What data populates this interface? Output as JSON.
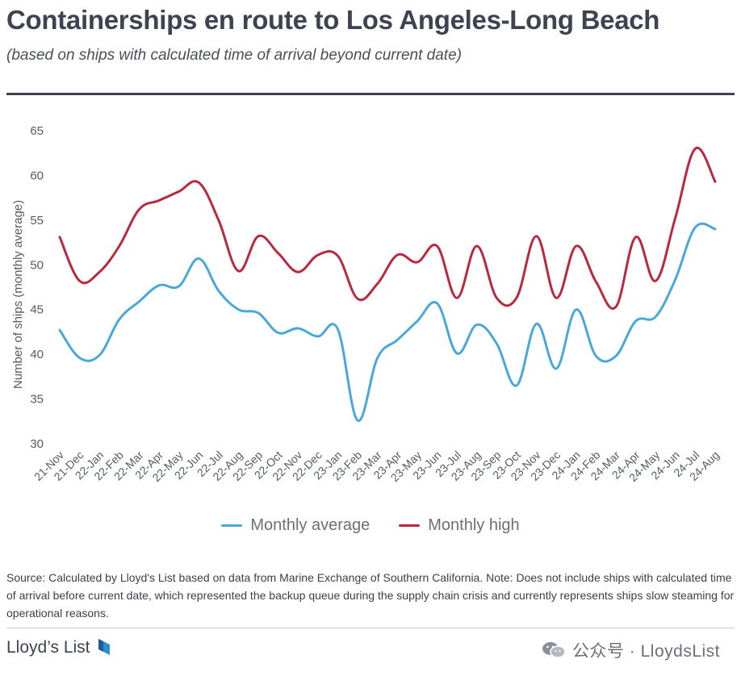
{
  "header": {
    "title": "Containerships en route to Los Angeles-Long Beach",
    "subtitle": "(based on ships with calculated time of arrival beyond current date)"
  },
  "chart_data": {
    "type": "line",
    "ylabel": "Number of ships (monthly average)",
    "xlabel": "",
    "ylim": [
      30,
      65
    ],
    "yticks": [
      30,
      35,
      40,
      45,
      50,
      55,
      60,
      65
    ],
    "grid": false,
    "legend_position": "bottom-center",
    "categories": [
      "21-Nov",
      "21-Dec",
      "22-Jan",
      "22-Feb",
      "22-Mar",
      "22-Apr",
      "22-May",
      "22-Jun",
      "22-Jul",
      "22-Aug",
      "22-Sep",
      "22-Oct",
      "22-Nov",
      "22-Dec",
      "23-Jan",
      "23-Feb",
      "23-Mar",
      "23-Apr",
      "23-May",
      "23-Jun",
      "23-Jul",
      "23-Aug",
      "23-Sep",
      "23-Oct",
      "23-Nov",
      "23-Dec",
      "24-Jan",
      "24-Feb",
      "24-Mar",
      "24-Apr",
      "24-May",
      "24-Jun",
      "24-Jul",
      "24-Aug"
    ],
    "series": [
      {
        "name": "Monthly average",
        "color": "#4aa8d8",
        "values": [
          42.7,
          39.6,
          39.9,
          43.9,
          45.9,
          47.7,
          47.6,
          50.7,
          47.1,
          45.0,
          44.6,
          42.4,
          42.9,
          42.0,
          42.8,
          32.6,
          39.6,
          41.6,
          43.7,
          45.7,
          40.1,
          43.3,
          41.2,
          36.5,
          43.4,
          38.4,
          45.0,
          39.8,
          39.8,
          43.7,
          44.2,
          48.4,
          54.2,
          54.0
        ]
      },
      {
        "name": "Monthly high",
        "color": "#b72a3e",
        "values": [
          53.1,
          48.2,
          49.2,
          52.1,
          56.2,
          57.2,
          58.2,
          59.2,
          55.0,
          49.3,
          53.2,
          51.3,
          49.2,
          51.1,
          51.0,
          46.2,
          47.9,
          51.1,
          50.3,
          52.1,
          46.3,
          52.1,
          46.3,
          46.3,
          53.2,
          46.3,
          52.1,
          48.1,
          45.3,
          53.1,
          48.2,
          55.3,
          63.0,
          59.3
        ]
      }
    ]
  },
  "source_text": "Source: Calculated by Lloyd's List based on data from Marine Exchange of Southern California. Note: Does not include ships with calculated time of arrival before current date, which represented the backup queue during the supply chain crisis and currently represents ships slow steaming for operational reasons.",
  "footer": {
    "logo_text": "Lloyd’s List",
    "watermark_text": "公众号 · LloydsList",
    "logo_icon": "lloyds-list-logo-icon",
    "watermark_icon": "wechat-icon"
  }
}
